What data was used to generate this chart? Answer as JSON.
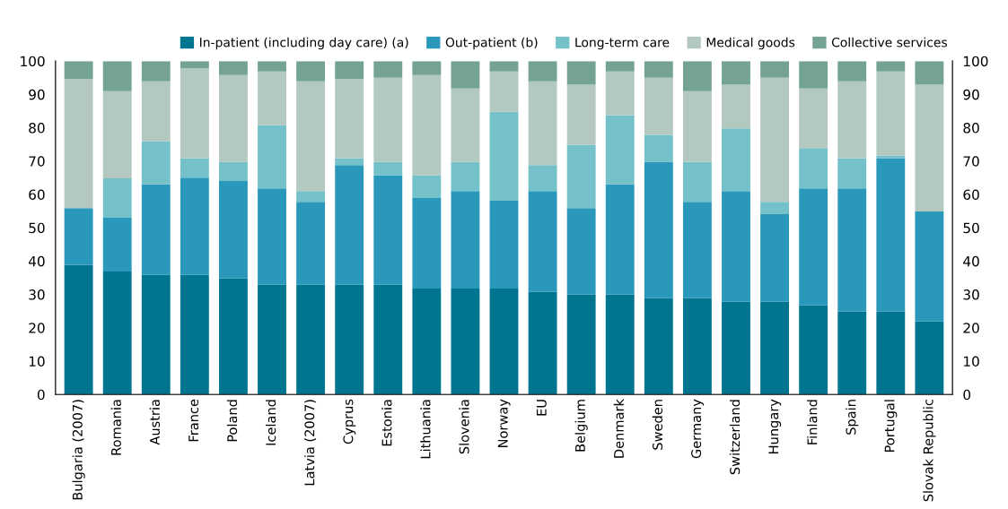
{
  "chart_data": {
    "type": "bar",
    "stacked": true,
    "categories": [
      "Bulgaria (2007)",
      "Romania",
      "Austria",
      "France",
      "Poland",
      "Iceland",
      "Latvia (2007)",
      "Cyprus",
      "Estonia",
      "Lithuania",
      "Slovenia",
      "Norway",
      "EU",
      "Belgium",
      "Denmark",
      "Sweden",
      "Germany",
      "Switzerland",
      "Hungary",
      "Finland",
      "Spain",
      "Portugal",
      "Slovak Republic"
    ],
    "series": [
      {
        "name": "In-patient (including day care) (a)",
        "color": "#00758f",
        "values": [
          38.8,
          36.9,
          35.9,
          35.9,
          34.8,
          32.9,
          32.9,
          32.9,
          32.9,
          31.8,
          31.8,
          31.8,
          30.8,
          30.0,
          30.0,
          28.9,
          28.9,
          27.8,
          27.8,
          26.8,
          24.9,
          24.9,
          21.9
        ]
      },
      {
        "name": "Out-patient (b)",
        "color": "#2a98bb",
        "values": [
          17.1,
          16.1,
          27.1,
          29.1,
          29.2,
          28.9,
          24.9,
          35.9,
          32.9,
          27.1,
          29.2,
          26.3,
          30.2,
          25.9,
          33.0,
          40.9,
          28.9,
          33.2,
          26.3,
          35.0,
          36.9,
          46.0,
          33.0
        ]
      },
      {
        "name": "Long-term care",
        "color": "#74c1ca",
        "values": [
          0,
          11.8,
          13.0,
          5.9,
          5.8,
          19.0,
          3.2,
          2.1,
          4.0,
          6.9,
          8.8,
          26.7,
          7.8,
          19.0,
          20.8,
          8.1,
          12.0,
          18.8,
          3.7,
          12.1,
          9.1,
          0.8,
          0
        ]
      },
      {
        "name": "Medical goods",
        "color": "#b3c8bf",
        "values": [
          38.8,
          26.2,
          17.9,
          27.0,
          26.0,
          16.1,
          32.9,
          23.8,
          25.2,
          30.0,
          22.0,
          12.1,
          25.1,
          18.0,
          13.1,
          17.1,
          21.2,
          13.1,
          37.2,
          17.9,
          23.0,
          25.2,
          38.0
        ]
      },
      {
        "name": "Collective services",
        "color": "#74a395",
        "values": [
          5.3,
          9.0,
          6.1,
          2.1,
          4.2,
          3.1,
          6.1,
          5.3,
          5.0,
          4.2,
          8.2,
          3.1,
          6.1,
          7.1,
          3.1,
          5.0,
          9.0,
          7.1,
          5.0,
          8.2,
          6.1,
          3.1,
          7.1
        ]
      }
    ],
    "ylim": [
      0,
      100
    ],
    "yticks": [
      0,
      10,
      20,
      30,
      40,
      50,
      60,
      70,
      80,
      90,
      100
    ],
    "y2lim": [
      0,
      100
    ],
    "y2ticks": [
      0,
      10,
      20,
      30,
      40,
      50,
      60,
      70,
      80,
      90,
      100
    ],
    "grid": false,
    "legend": "top right"
  }
}
